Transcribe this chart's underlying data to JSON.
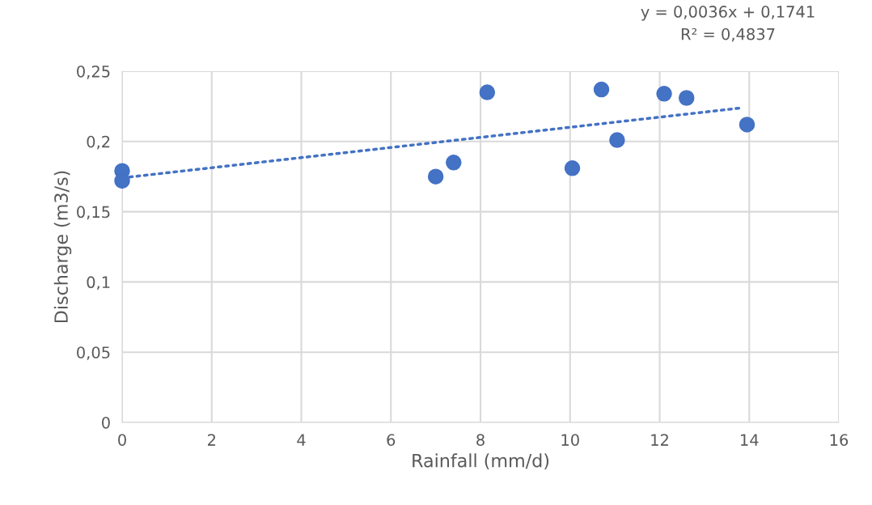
{
  "chart_data": {
    "type": "scatter",
    "xlabel": "Rainfall (mm/d)",
    "ylabel": "Discharge (m3/s)",
    "series": [
      {
        "color": "#4472c4",
        "marker": "circle",
        "x": [
          0,
          0,
          7.0,
          7.4,
          8.15,
          10.05,
          10.7,
          11.05,
          12.1,
          12.6,
          13.95
        ],
        "values": [
          0.179,
          0.172,
          0.175,
          0.185,
          0.235,
          0.181,
          0.237,
          0.201,
          0.234,
          0.231,
          0.212
        ]
      },
      {
        "type": "line",
        "color": "#4472c4",
        "line_style": "dotted",
        "marker": "none",
        "x": [
          0,
          13.8
        ],
        "values": [
          0.1741,
          0.2238
        ]
      }
    ],
    "annotations": [
      "y = 0,0036x + 0,1741\nR² = 0,4837"
    ],
    "xlim": [
      0,
      16
    ],
    "xticks": [
      0,
      2,
      4,
      6,
      8,
      10,
      12,
      14,
      16
    ],
    "ylim": [
      0,
      0.25
    ],
    "yticks": [
      {
        "value": 0,
        "label": "0"
      },
      {
        "value": 0.05,
        "label": "0,05"
      },
      {
        "value": 0.1,
        "label": "0,1"
      },
      {
        "value": 0.15,
        "label": "0,15"
      },
      {
        "value": 0.2,
        "label": "0,2"
      },
      {
        "value": 0.25,
        "label": "0,25"
      }
    ],
    "grid": true,
    "legend": false
  }
}
